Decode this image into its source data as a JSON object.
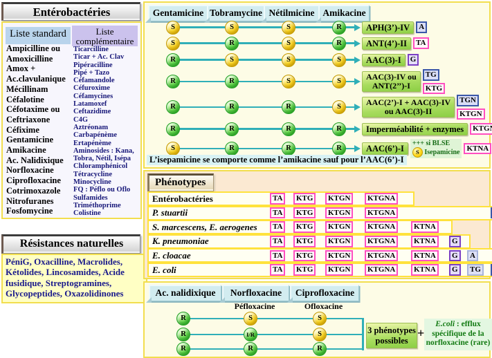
{
  "left": {
    "title": "Entérobactéries",
    "std_header": "Liste standard",
    "comp_header": "Liste complémentaire",
    "std_items": [
      "Ampicilline ou",
      "Amoxicilline",
      "Amox +",
      "Ac.clavulanique",
      "Mécillinam",
      "Céfalotine",
      "Céfotaxime ou",
      "Ceftriaxone",
      "Céfixime",
      "Gentamicine",
      "Amikacine",
      "Ac. Nalidixique",
      "Norfloxacine",
      "Ciprofloxacine",
      "Cotrimoxazole",
      "Nitrofuranes",
      "Fosfomycine"
    ],
    "comp_items": [
      "Ticarcilline",
      "Ticar + Ac. Clav",
      "Pipéracilline",
      "Pipé + Tazo",
      "Céfamandole",
      "Céfuroxime",
      "Céfamycines",
      "Latamoxef",
      "Ceftazidime",
      "C4G",
      "Aztréonam",
      "Carbapénème",
      "Ertapénème",
      "Aminosides : Kana,",
      "Tobra, Nétil, Isépa",
      "Chloramphénicol",
      "Tétracycline",
      "Minocycline",
      "FQ : Péflo ou Oflo",
      "Sulfamides",
      "Triméthoprime",
      "Colistine"
    ],
    "nat_title": "Résistances naturelles",
    "nat_text": "PéniG, Oxacilline, Macrolides, Kétolides, Lincosamides, Acide fusidique, Streptogramines, Glycopeptides, Oxazolidinones"
  },
  "amino": {
    "headers": [
      "Gentamicine",
      "Tobramycine",
      "Nétilmicine",
      "Amikacine"
    ],
    "rows": [
      {
        "cells": [
          "S",
          "S",
          "S",
          "R"
        ],
        "label_lines": [
          "APH(3’)-IV"
        ],
        "badges": [
          {
            "text": "A",
            "style": "navy"
          }
        ]
      },
      {
        "cells": [
          "S",
          "R",
          "S",
          "R"
        ],
        "label_lines": [
          "ANT(4’)-II"
        ],
        "badges": [
          {
            "text": "TA",
            "style": "pink"
          }
        ]
      },
      {
        "cells": [
          "R",
          "S",
          "S",
          "S"
        ],
        "label_lines": [
          "AAC(3)-I"
        ],
        "badges": [
          {
            "text": "G",
            "style": "purple"
          }
        ]
      },
      {
        "cells": [
          "R",
          "R",
          "S",
          "S"
        ],
        "label_lines": [
          "AAC(3)-IV ou",
          "ANT(2’’)-I"
        ],
        "badges": [
          {
            "text": "TG",
            "style": "navy"
          },
          {
            "text": "KTG",
            "style": "pink"
          }
        ]
      },
      {
        "cells": [
          "R",
          "R",
          "R",
          "S"
        ],
        "label_lines": [
          "AAC(2’)-I + AAC(3)-IV",
          "ou AAC(3)-II"
        ],
        "badges": [
          {
            "text": "TGN",
            "style": "navy"
          },
          {
            "text": "KTGN",
            "style": "pink"
          }
        ]
      },
      {
        "cells": [
          "R",
          "R",
          "R",
          "R"
        ],
        "label_lines": [
          "Imperméabilité + enzymes"
        ],
        "badges": [
          {
            "text": "KTGNA",
            "style": "pink"
          }
        ]
      },
      {
        "cells": [
          "S",
          "R",
          "R",
          "R"
        ],
        "label_lines": [
          "AAC(6’)-I"
        ],
        "blse": {
          "top": "+++ si BLSE",
          "s": "S",
          "name": "Isepamicine"
        },
        "badges": [
          {
            "text": "KTNA",
            "style": "pink"
          }
        ]
      }
    ],
    "note": "L’isepamicine se comporte comme l’amikacine sauf pour l’AAC(6’)-I"
  },
  "phenotypes": {
    "title": "Phénotypes",
    "badge_styles": {
      "TA": "pink",
      "KTG": "pink",
      "KTGN": "pink",
      "KTGNA": "pink",
      "KTNA": "pink",
      "G": "purple",
      "A": "light",
      "TG": "light",
      "TGN": "navy"
    },
    "rows": [
      {
        "name": "Entérobactéries",
        "italic": false,
        "slots": [
          "TA",
          "KTG",
          "KTGN",
          "KTGNA"
        ]
      },
      {
        "name": "P. stuartii",
        "italic": true,
        "slots": [
          "TA",
          "KTG",
          "KTGN",
          "KTGNA",
          null,
          null,
          null,
          "TGN"
        ]
      },
      {
        "name": "S. marcescens, E. aerogenes",
        "italic": true,
        "slots": [
          "TA",
          "KTG",
          "KTGN",
          "KTGNA",
          "KTNA"
        ]
      },
      {
        "name": "K. pneumoniae",
        "italic": true,
        "slots": [
          "TA",
          "KTG",
          "KTGN",
          "KTGNA",
          "KTNA",
          "G"
        ]
      },
      {
        "name": "E. cloacae",
        "italic": true,
        "slots": [
          "TA",
          "KTG",
          "KTGN",
          "KTGNA",
          "KTNA",
          "G",
          "A"
        ]
      },
      {
        "name": "E. coli",
        "italic": true,
        "slots": [
          "TA",
          "KTG",
          "KTGN",
          "KTGNA",
          "KTNA",
          "G",
          "TG",
          "TGN"
        ]
      }
    ]
  },
  "fq": {
    "headers": [
      {
        "label": "Ac. nalidixique",
        "sub": ""
      },
      {
        "label": "Norfloxacine",
        "sub": "Péfloxacine"
      },
      {
        "label": "Ciprofloxacine",
        "sub": "Ofloxacine"
      }
    ],
    "rows": [
      [
        "R",
        "S",
        "S"
      ],
      [
        "R",
        "I/R",
        "S"
      ],
      [
        "R",
        "R",
        "R"
      ]
    ],
    "result_lines": [
      "3 phénotypes",
      "possibles"
    ],
    "plus": "+",
    "ecoli_italic": "E.coli",
    "ecoli_rest": " : efflux spécifique de la norfloxacine (rare)"
  }
}
